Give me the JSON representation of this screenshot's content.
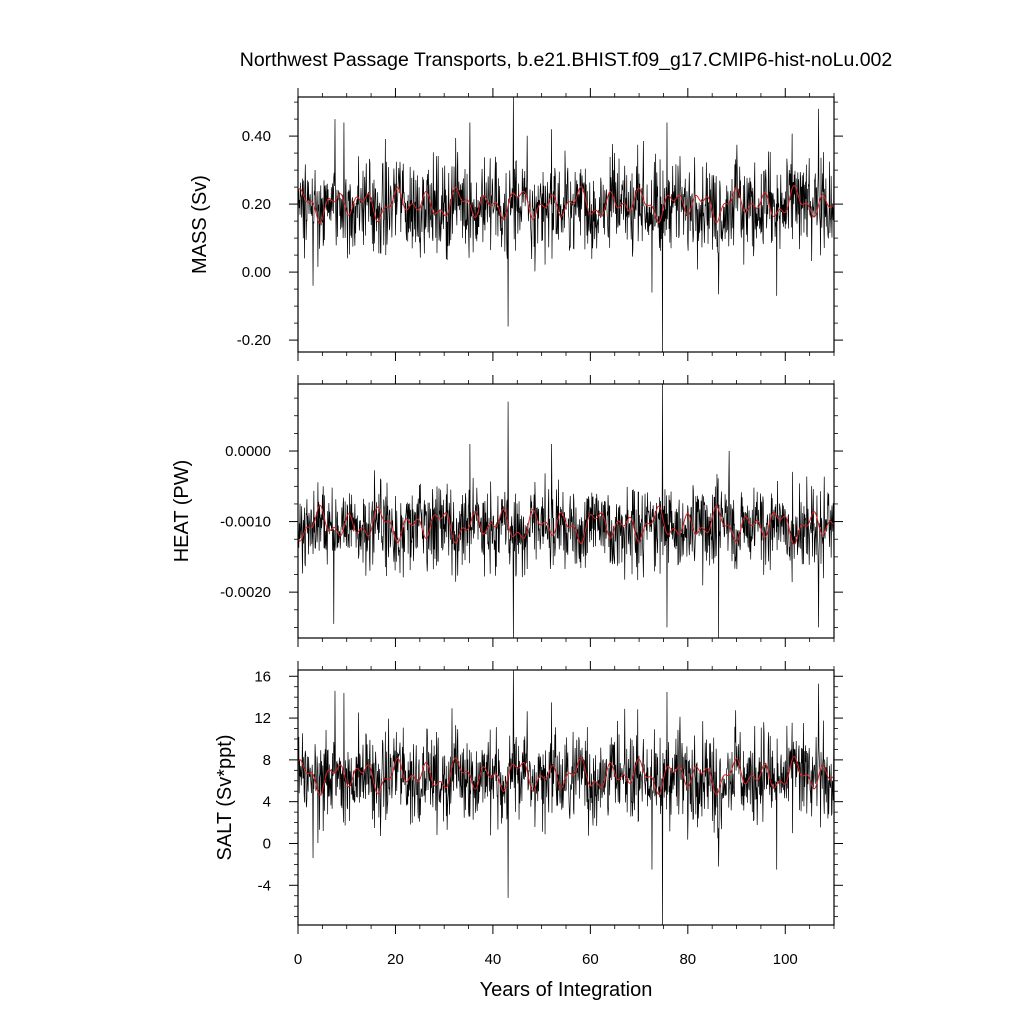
{
  "chart_data": {
    "type": "line",
    "title": "Northwest Passage Transports, b.e21.BHIST.f09_g17.CMIP6-hist-noLu.002",
    "xlabel": "Years of Integration",
    "xlim": [
      0,
      110
    ],
    "xticks": [
      0,
      20,
      40,
      60,
      80,
      100
    ],
    "xtick_labels": [
      "0",
      "20",
      "40",
      "60",
      "80",
      "100"
    ],
    "grid": false,
    "colors": {
      "monthly": "#000000",
      "annual": "#d62020"
    },
    "panels": [
      {
        "id": "mass",
        "ylabel": "MASS (Sv)",
        "ylim": [
          -0.235,
          0.515
        ],
        "yticks": [
          -0.2,
          0.0,
          0.2,
          0.4
        ],
        "ytick_labels": [
          "-0.20",
          "0.00",
          "0.20",
          "0.40"
        ],
        "mean": 0.195,
        "amplitude": 0.08,
        "annual_mean": 0.2,
        "annual_amplitude": 0.03,
        "spikes": [
          {
            "x": 44.2,
            "y": 0.52
          },
          {
            "x": 43.1,
            "y": -0.16
          },
          {
            "x": 74.8,
            "y": -0.235
          },
          {
            "x": 72.6,
            "y": -0.06
          },
          {
            "x": 86.3,
            "y": -0.065
          },
          {
            "x": 98.2,
            "y": -0.07
          },
          {
            "x": 106.8,
            "y": 0.48
          },
          {
            "x": 7.6,
            "y": 0.45
          },
          {
            "x": 9.4,
            "y": 0.44
          },
          {
            "x": 35.3,
            "y": 0.44
          },
          {
            "x": 52.0,
            "y": 0.42
          },
          {
            "x": 75.7,
            "y": 0.44
          },
          {
            "x": 3.1,
            "y": -0.04
          },
          {
            "x": 0.0,
            "y": 0.12
          }
        ]
      },
      {
        "id": "heat",
        "ylabel": "HEAT (PW)",
        "ylim": [
          -0.00265,
          0.00095
        ],
        "yticks": [
          -0.002,
          -0.001,
          0.0
        ],
        "ytick_labels": [
          "-0.0020",
          "-0.0010",
          "0.0000"
        ],
        "mean": -0.00108,
        "amplitude": 0.00035,
        "annual_mean": -0.00105,
        "annual_amplitude": 0.00015,
        "spikes": [
          {
            "x": 43.1,
            "y": 0.0007
          },
          {
            "x": 74.8,
            "y": 0.00095
          },
          {
            "x": 44.2,
            "y": -0.00265
          },
          {
            "x": 86.3,
            "y": -0.00265
          },
          {
            "x": 7.3,
            "y": -0.00245
          },
          {
            "x": 75.7,
            "y": -0.0025
          },
          {
            "x": 106.8,
            "y": -0.0025
          },
          {
            "x": 52.0,
            "y": 0.0001
          },
          {
            "x": 35.3,
            "y": 0.0001
          },
          {
            "x": 88.5,
            "y": 0.0
          }
        ]
      },
      {
        "id": "salt",
        "ylabel": "SALT (Sv*ppt)",
        "ylim": [
          -7.8,
          16.6
        ],
        "yticks": [
          -4,
          0,
          4,
          8,
          12,
          16
        ],
        "ytick_labels": [
          "-4",
          "0",
          "4",
          "8",
          "12",
          "16"
        ],
        "mean": 6.4,
        "amplitude": 2.6,
        "annual_mean": 6.5,
        "annual_amplitude": 1.0,
        "spikes": [
          {
            "x": 44.2,
            "y": 16.6
          },
          {
            "x": 43.1,
            "y": -5.2
          },
          {
            "x": 74.8,
            "y": -7.8
          },
          {
            "x": 72.6,
            "y": -2.5
          },
          {
            "x": 86.3,
            "y": -2.2
          },
          {
            "x": 98.2,
            "y": -2.5
          },
          {
            "x": 106.8,
            "y": 15.3
          },
          {
            "x": 7.6,
            "y": 14.6
          },
          {
            "x": 9.4,
            "y": 14.4
          },
          {
            "x": 52.0,
            "y": 13.5
          },
          {
            "x": 75.7,
            "y": 14.5
          },
          {
            "x": 3.1,
            "y": -1.4
          }
        ]
      }
    ]
  }
}
